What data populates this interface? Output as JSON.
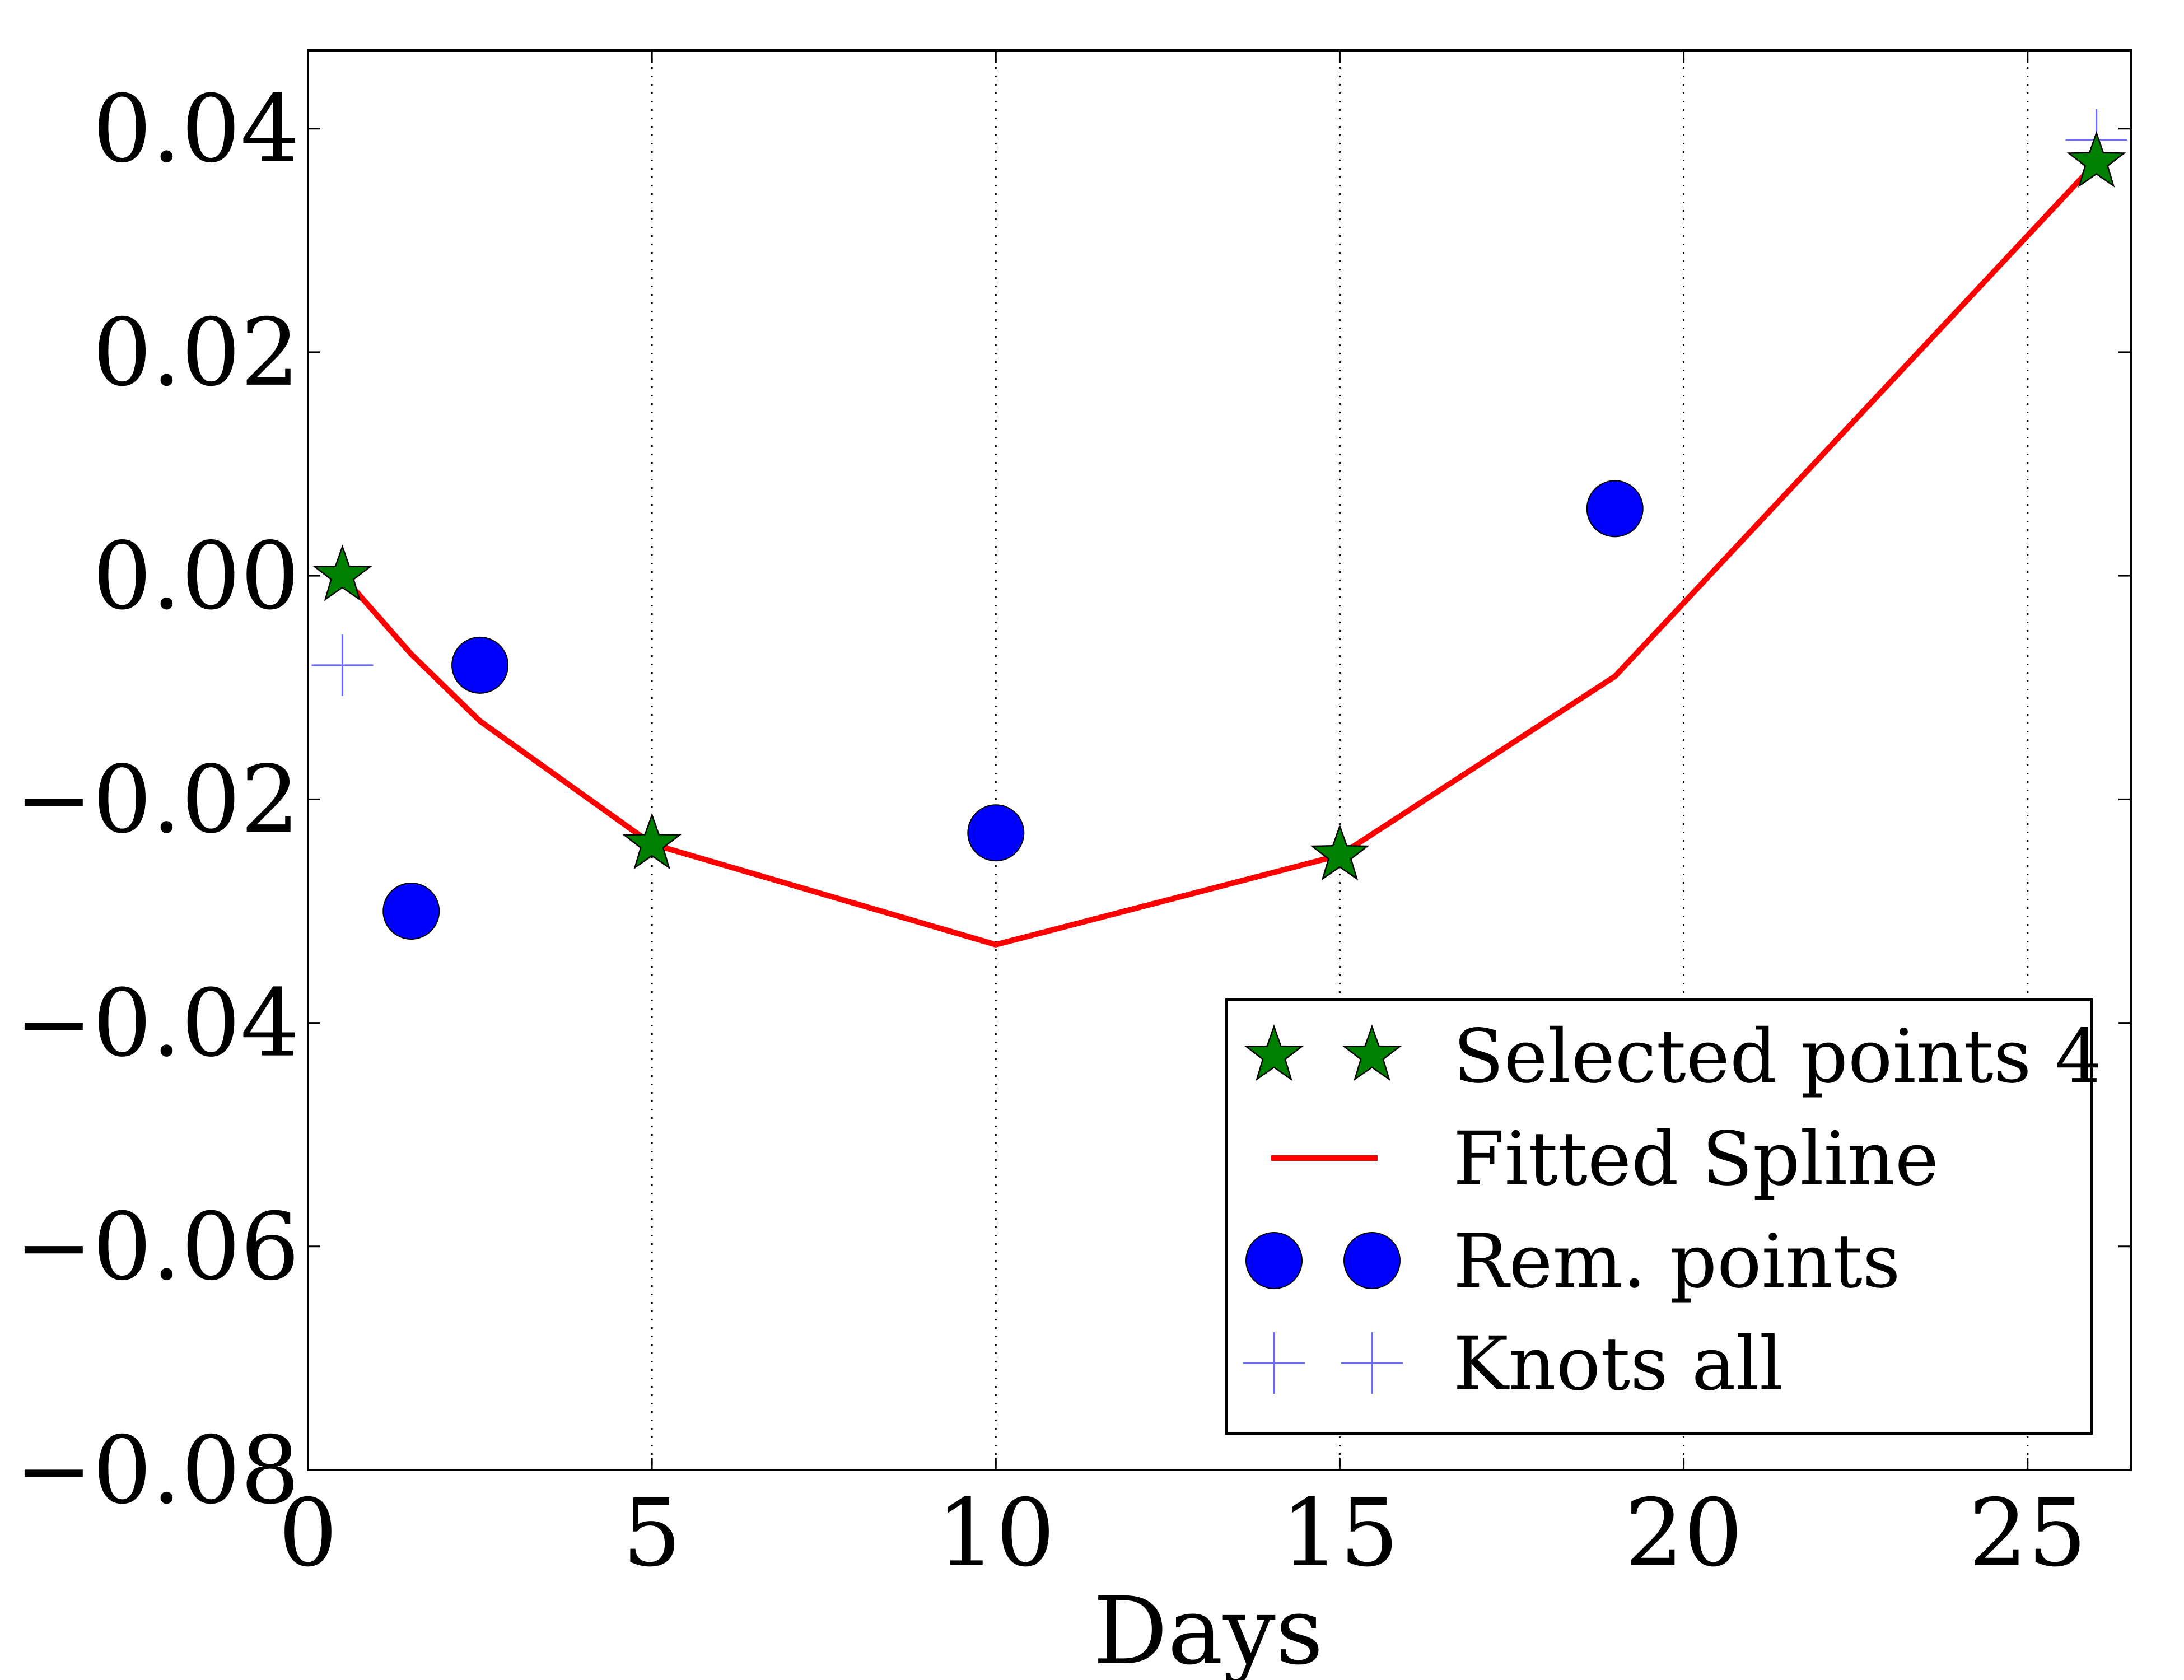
{
  "chart_data": {
    "type": "scatter",
    "title": "",
    "xlabel": "Days",
    "ylabel": "",
    "xlim": [
      0,
      26.5
    ],
    "ylim": [
      -0.08,
      0.047
    ],
    "x_ticks": [
      0,
      5,
      10,
      15,
      20,
      25
    ],
    "x_tick_labels": [
      "0",
      "5",
      "10",
      "15",
      "20",
      "25"
    ],
    "y_ticks": [
      -0.08,
      -0.06,
      -0.04,
      -0.02,
      0.0,
      0.02,
      0.04
    ],
    "y_tick_labels": [
      "−0.08",
      "−0.06",
      "−0.04",
      "−0.02",
      "0.00",
      "0.02",
      "0.04"
    ],
    "grid": "vertical dotted lines at x ticks",
    "legend_position": "lower-right",
    "series": [
      {
        "name": "Selected points 4",
        "kind": "scatter",
        "marker": "star",
        "color": "#008000",
        "x": [
          0.5,
          5,
          15,
          26
        ],
        "y": [
          0.0,
          -0.024,
          -0.025,
          0.037
        ]
      },
      {
        "name": "Fitted Spline",
        "kind": "line",
        "color": "#ff0000",
        "x": [
          0.5,
          1.5,
          2.5,
          5,
          10,
          15,
          19,
          26
        ],
        "y": [
          0.0,
          -0.007,
          -0.013,
          -0.024,
          -0.033,
          -0.025,
          -0.009,
          0.037
        ]
      },
      {
        "name": "Rem. points",
        "kind": "scatter",
        "marker": "circle",
        "color": "#0000ff",
        "x": [
          1.5,
          2.5,
          10,
          19
        ],
        "y": [
          -0.03,
          -0.008,
          -0.023,
          0.006
        ]
      },
      {
        "name": "Knots all",
        "kind": "scatter",
        "marker": "plus",
        "color": "#6b6bff",
        "x": [
          0.5,
          26
        ],
        "y": [
          -0.008,
          0.039
        ]
      }
    ]
  }
}
